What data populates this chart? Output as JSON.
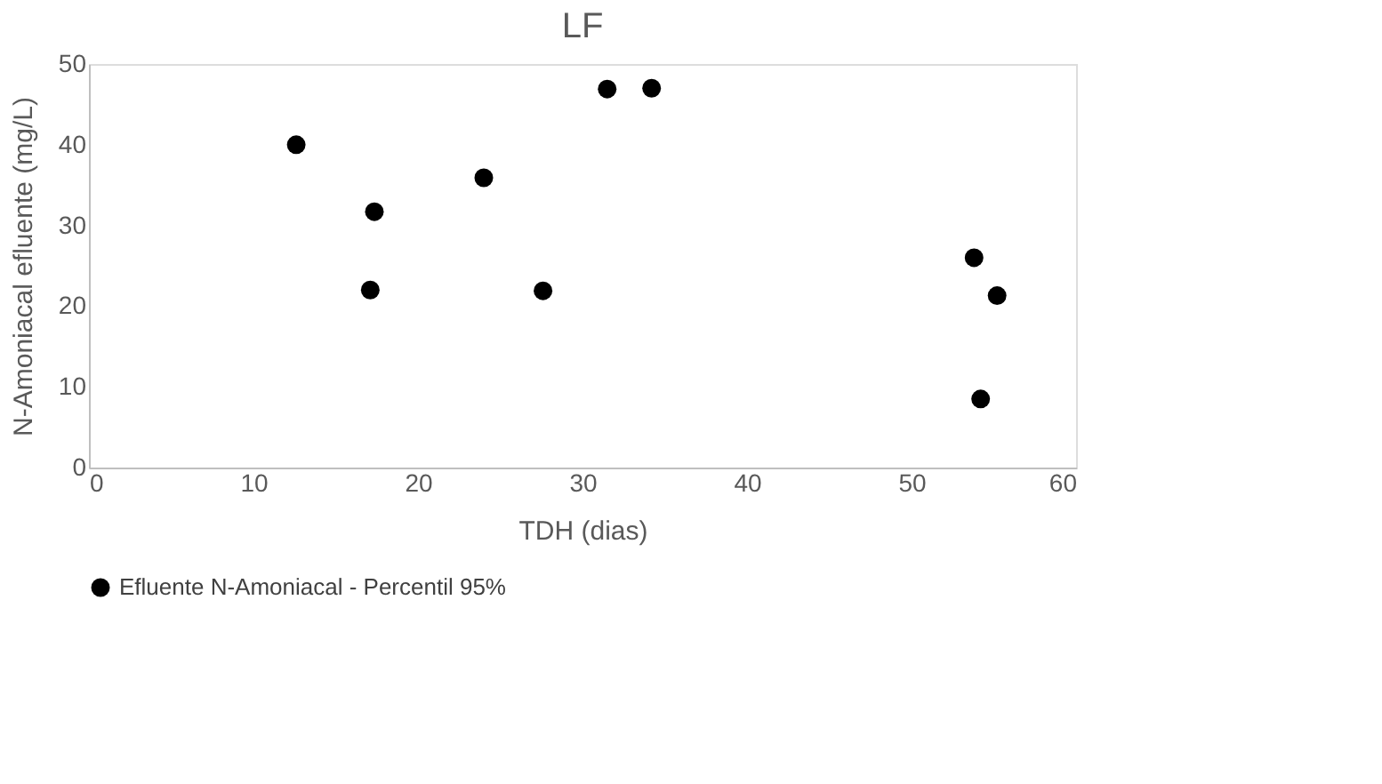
{
  "chart_data": {
    "type": "scatter",
    "title": "LF",
    "xlabel": "TDH (dias)",
    "ylabel": "N-Amoniacal efluente (mg/L)",
    "x": [
      12.6,
      17.35,
      17.1,
      24.0,
      27.6,
      31.5,
      34.2,
      53.8,
      55.2,
      54.2
    ],
    "series": [
      {
        "name": "Efluente N-Amoniacal - Percentil 95%",
        "color": "#000000",
        "values": [
          40.0,
          31.7,
          22.0,
          35.9,
          21.9,
          46.9,
          47.0,
          26.0,
          21.3,
          8.5
        ]
      }
    ],
    "xlim": [
      0,
      60
    ],
    "xticks": [
      0,
      10,
      20,
      30,
      40,
      50,
      60
    ],
    "ylim": [
      0,
      50
    ],
    "yticks": [
      0,
      10,
      20,
      30,
      40,
      50
    ],
    "grid": false,
    "legend": "bottom",
    "marker": "circle"
  }
}
